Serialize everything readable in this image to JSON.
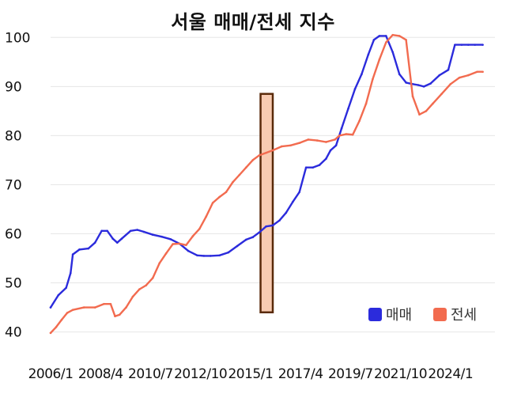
{
  "chart_data": {
    "type": "line",
    "title": "서울 매매/전세 지수",
    "xlabel": "",
    "ylabel": "",
    "ylim": [
      38,
      101.5
    ],
    "yticks": [
      40,
      50,
      60,
      70,
      80,
      90,
      100
    ],
    "xlim": [
      2006.0,
      2026.0
    ],
    "xticks": [
      {
        "label": "2006/1",
        "x": 2006.0
      },
      {
        "label": "2008/4",
        "x": 2008.25
      },
      {
        "label": "2010/7",
        "x": 2010.5
      },
      {
        "label": "2012/10",
        "x": 2012.75
      },
      {
        "label": "2015/1",
        "x": 2015.0
      },
      {
        "label": "2017/4",
        "x": 2017.25
      },
      {
        "label": "2019/7",
        "x": 2019.5
      },
      {
        "label": "2021/10",
        "x": 2021.75
      },
      {
        "label": "2024/1",
        "x": 2024.0
      }
    ],
    "grid": "horizontal",
    "legend_position": "bottom-right",
    "highlight_box": {
      "x_start": 2015.45,
      "x_end": 2016.0,
      "y_low": 44,
      "y_high": 88.5,
      "color": "#f8cbb2",
      "border": "#5a2a0a"
    },
    "series": [
      {
        "name": "매매",
        "color": "#2b2bdc",
        "x": [
          2006.0,
          2006.35,
          2006.7,
          2006.9,
          2007.0,
          2007.3,
          2007.7,
          2008.0,
          2008.3,
          2008.55,
          2008.8,
          2009.0,
          2009.2,
          2009.6,
          2009.9,
          2010.2,
          2010.6,
          2011.0,
          2011.4,
          2011.8,
          2012.2,
          2012.6,
          2012.9,
          2013.2,
          2013.6,
          2014.0,
          2014.4,
          2014.8,
          2015.1,
          2015.4,
          2015.7,
          2016.0,
          2016.3,
          2016.6,
          2016.9,
          2017.2,
          2017.5,
          2017.8,
          2018.1,
          2018.4,
          2018.6,
          2018.85,
          2019.1,
          2019.4,
          2019.7,
          2020.0,
          2020.3,
          2020.55,
          2020.8,
          2021.1,
          2021.4,
          2021.7,
          2022.0,
          2022.3,
          2022.55,
          2022.8,
          2023.1,
          2023.5,
          2023.9,
          2024.2,
          2024.5,
          2024.8,
          2025.1,
          2025.45
        ],
        "values": [
          45.0,
          47.5,
          49.0,
          52.0,
          55.8,
          56.8,
          57.0,
          58.2,
          60.6,
          60.6,
          59.0,
          58.2,
          59.0,
          60.6,
          60.8,
          60.4,
          59.8,
          59.4,
          58.9,
          58.0,
          56.5,
          55.6,
          55.5,
          55.5,
          55.6,
          56.2,
          57.5,
          58.8,
          59.3,
          60.3,
          61.5,
          61.7,
          62.7,
          64.3,
          66.5,
          68.5,
          73.5,
          73.5,
          74.0,
          75.3,
          77.0,
          78.0,
          81.5,
          85.5,
          89.5,
          92.5,
          96.5,
          99.5,
          100.3,
          100.3,
          97.0,
          92.5,
          90.8,
          90.5,
          90.3,
          90.0,
          90.6,
          92.3,
          93.4,
          98.5,
          98.5,
          98.5,
          98.5,
          98.5
        ]
      },
      {
        "name": "전세",
        "color": "#f26b4f",
        "x": [
          2006.0,
          2006.25,
          2006.5,
          2006.75,
          2007.0,
          2007.5,
          2008.0,
          2008.4,
          2008.7,
          2008.9,
          2009.1,
          2009.4,
          2009.7,
          2010.0,
          2010.3,
          2010.6,
          2010.9,
          2011.2,
          2011.5,
          2011.8,
          2012.1,
          2012.4,
          2012.7,
          2013.0,
          2013.3,
          2013.6,
          2013.9,
          2014.2,
          2014.5,
          2014.8,
          2015.1,
          2015.4,
          2015.7,
          2016.0,
          2016.4,
          2016.8,
          2017.2,
          2017.6,
          2018.0,
          2018.4,
          2018.8,
          2019.0,
          2019.3,
          2019.6,
          2019.9,
          2020.2,
          2020.5,
          2020.8,
          2021.1,
          2021.4,
          2021.7,
          2022.0,
          2022.3,
          2022.6,
          2022.9,
          2023.2,
          2023.6,
          2024.0,
          2024.4,
          2024.8,
          2025.2,
          2025.45
        ],
        "values": [
          39.8,
          41.0,
          42.5,
          43.9,
          44.5,
          45.0,
          45.0,
          45.7,
          45.7,
          43.2,
          43.5,
          45.0,
          47.2,
          48.7,
          49.5,
          51.0,
          54.0,
          56.0,
          57.9,
          58.0,
          57.7,
          59.5,
          61.0,
          63.5,
          66.3,
          67.5,
          68.5,
          70.5,
          72.0,
          73.5,
          75.0,
          76.0,
          76.5,
          77.0,
          77.8,
          78.0,
          78.5,
          79.2,
          79.0,
          78.7,
          79.2,
          80.0,
          80.3,
          80.2,
          83.0,
          86.5,
          91.5,
          95.5,
          99.0,
          100.5,
          100.3,
          99.5,
          88.0,
          84.3,
          85.0,
          86.5,
          88.5,
          90.5,
          91.8,
          92.3,
          93.0,
          93.0
        ]
      }
    ]
  }
}
